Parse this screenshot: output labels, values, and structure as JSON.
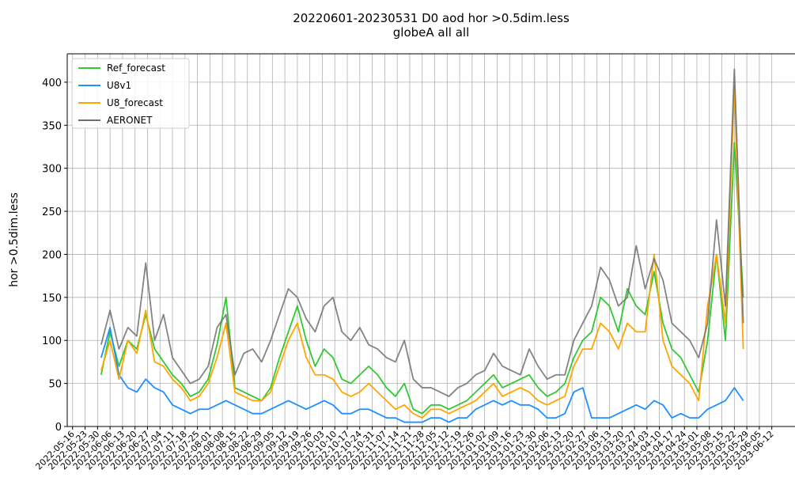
{
  "chart_data": {
    "type": "line",
    "title": "20220601-20230531 D0 aod hor >0.5dim.less",
    "subtitle": "globeA all all",
    "ylabel": "hor >0.5dim.less",
    "x": [
      "2022-06-01",
      "2022-06-06",
      "2022-06-11",
      "2022-06-16",
      "2022-06-21",
      "2022-06-26",
      "2022-07-01",
      "2022-07-06",
      "2022-07-11",
      "2022-07-16",
      "2022-07-21",
      "2022-07-26",
      "2022-07-31",
      "2022-08-05",
      "2022-08-10",
      "2022-08-15",
      "2022-08-20",
      "2022-08-25",
      "2022-08-30",
      "2022-09-04",
      "2022-09-09",
      "2022-09-14",
      "2022-09-19",
      "2022-09-24",
      "2022-09-29",
      "2022-10-04",
      "2022-10-09",
      "2022-10-14",
      "2022-10-19",
      "2022-10-24",
      "2022-10-29",
      "2022-11-03",
      "2022-11-08",
      "2022-11-13",
      "2022-11-18",
      "2022-11-23",
      "2022-11-28",
      "2022-12-03",
      "2022-12-08",
      "2022-12-13",
      "2022-12-18",
      "2022-12-23",
      "2022-12-28",
      "2023-01-02",
      "2023-01-07",
      "2023-01-12",
      "2023-01-17",
      "2023-01-22",
      "2023-01-27",
      "2023-02-01",
      "2023-02-06",
      "2023-02-11",
      "2023-02-16",
      "2023-02-21",
      "2023-02-26",
      "2023-03-03",
      "2023-03-08",
      "2023-03-13",
      "2023-03-18",
      "2023-03-23",
      "2023-03-28",
      "2023-04-02",
      "2023-04-07",
      "2023-04-12",
      "2023-04-17",
      "2023-04-22",
      "2023-04-27",
      "2023-05-02",
      "2023-05-07",
      "2023-05-12",
      "2023-05-17",
      "2023-05-22",
      "2023-05-27"
    ],
    "series": [
      {
        "name": "Ref_forecast",
        "color": "#32c832",
        "values": [
          60,
          110,
          70,
          100,
          90,
          130,
          90,
          75,
          60,
          50,
          35,
          40,
          55,
          95,
          150,
          45,
          40,
          35,
          30,
          45,
          80,
          110,
          140,
          100,
          70,
          90,
          80,
          55,
          50,
          60,
          70,
          60,
          45,
          35,
          50,
          20,
          15,
          25,
          25,
          20,
          25,
          30,
          40,
          50,
          60,
          45,
          50,
          55,
          60,
          45,
          35,
          40,
          50,
          80,
          100,
          110,
          150,
          140,
          110,
          160,
          140,
          130,
          180,
          120,
          90,
          80,
          60,
          40,
          100,
          200,
          100,
          330,
          150
        ]
      },
      {
        "name": "U8v1",
        "color": "#1e90ff",
        "values": [
          80,
          115,
          60,
          45,
          40,
          55,
          45,
          40,
          25,
          20,
          15,
          20,
          20,
          25,
          30,
          25,
          20,
          15,
          15,
          20,
          25,
          30,
          25,
          20,
          25,
          30,
          25,
          15,
          15,
          20,
          20,
          15,
          10,
          10,
          5,
          5,
          5,
          10,
          10,
          5,
          10,
          10,
          20,
          25,
          30,
          25,
          30,
          25,
          25,
          20,
          10,
          10,
          15,
          40,
          45,
          10,
          10,
          10,
          15,
          20,
          25,
          20,
          30,
          25,
          10,
          15,
          10,
          10,
          20,
          25,
          30,
          45,
          30
        ]
      },
      {
        "name": "U8_forecast",
        "color": "#ffa500",
        "values": [
          65,
          100,
          55,
          100,
          85,
          135,
          75,
          70,
          55,
          45,
          30,
          35,
          50,
          80,
          120,
          40,
          35,
          30,
          30,
          40,
          70,
          100,
          120,
          80,
          60,
          60,
          55,
          40,
          35,
          40,
          50,
          40,
          30,
          20,
          25,
          15,
          10,
          20,
          20,
          15,
          20,
          25,
          30,
          40,
          50,
          35,
          40,
          45,
          40,
          30,
          25,
          30,
          35,
          70,
          90,
          90,
          120,
          110,
          90,
          120,
          110,
          110,
          200,
          100,
          70,
          60,
          50,
          30,
          140,
          200,
          120,
          395,
          90
        ]
      },
      {
        "name": "AERONET",
        "color": "#6e6e6e",
        "values": [
          95,
          135,
          90,
          115,
          105,
          190,
          100,
          130,
          80,
          65,
          50,
          55,
          70,
          115,
          130,
          60,
          85,
          90,
          75,
          100,
          130,
          160,
          150,
          125,
          110,
          140,
          150,
          110,
          100,
          115,
          95,
          90,
          80,
          75,
          100,
          55,
          45,
          45,
          40,
          35,
          45,
          50,
          60,
          65,
          85,
          70,
          65,
          60,
          90,
          70,
          55,
          60,
          60,
          100,
          120,
          140,
          185,
          170,
          140,
          150,
          210,
          160,
          195,
          170,
          120,
          110,
          100,
          80,
          120,
          240,
          140,
          415,
          120
        ]
      }
    ],
    "xlim": [
      "2022-05-13",
      "2023-06-25"
    ],
    "xticks": [
      "2022-05-16",
      "2022-05-23",
      "2022-05-30",
      "2022-06-06",
      "2022-06-13",
      "2022-06-20",
      "2022-06-27",
      "2022-07-04",
      "2022-07-11",
      "2022-07-18",
      "2022-07-25",
      "2022-08-01",
      "2022-08-08",
      "2022-08-15",
      "2022-08-22",
      "2022-08-29",
      "2022-09-05",
      "2022-09-12",
      "2022-09-19",
      "2022-09-26",
      "2022-10-03",
      "2022-10-10",
      "2022-10-17",
      "2022-10-24",
      "2022-10-31",
      "2022-11-07",
      "2022-11-14",
      "2022-11-21",
      "2022-11-28",
      "2022-12-05",
      "2022-12-12",
      "2022-12-19",
      "2022-12-26",
      "2023-01-02",
      "2023-01-09",
      "2023-01-16",
      "2023-01-23",
      "2023-01-30",
      "2023-02-06",
      "2023-02-13",
      "2023-02-20",
      "2023-02-27",
      "2023-03-06",
      "2023-03-13",
      "2023-03-20",
      "2023-03-27",
      "2023-04-03",
      "2023-04-10",
      "2023-04-17",
      "2023-04-24",
      "2023-05-01",
      "2023-05-08",
      "2023-05-15",
      "2023-05-22",
      "2023-05-29",
      "2023-06-05",
      "2023-06-12"
    ],
    "ylim": [
      0,
      433
    ],
    "yticks": [
      0,
      50,
      100,
      150,
      200,
      250,
      300,
      350,
      400
    ],
    "grid": true,
    "legend": "upper left"
  }
}
